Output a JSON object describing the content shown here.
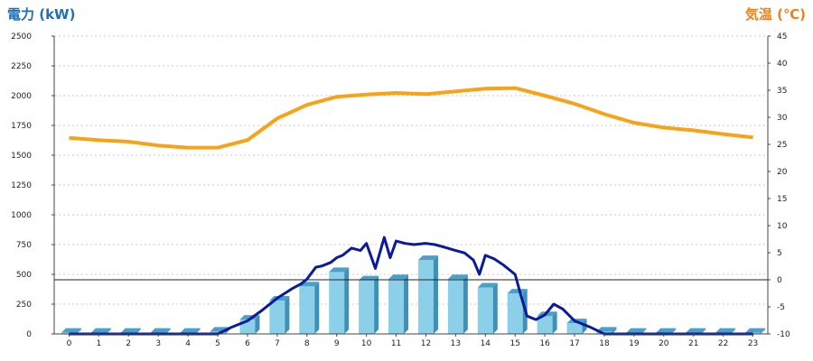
{
  "chart_data": {
    "type": "bar+line",
    "ylabel_left": "電力 (kW)",
    "ylabel_right": "気温 (℃)",
    "categories": [
      "0",
      "1",
      "2",
      "3",
      "4",
      "5",
      "6",
      "7",
      "8",
      "9",
      "10",
      "11",
      "12",
      "13",
      "14",
      "15",
      "16",
      "17",
      "18",
      "19",
      "20",
      "21",
      "22",
      "23"
    ],
    "ylim_left": [
      0,
      2500
    ],
    "yticks_left": [
      "0",
      "250",
      "500",
      "750",
      "1000",
      "1250",
      "1500",
      "1750",
      "2000",
      "2250",
      "2500"
    ],
    "ylim_right": [
      -10,
      45
    ],
    "yticks_right": [
      "-10",
      "-5",
      "0",
      "5",
      "10",
      "15",
      "20",
      "25",
      "30",
      "35",
      "40",
      "45"
    ],
    "grid": true,
    "bars": {
      "values": [
        10,
        10,
        10,
        10,
        10,
        20,
        120,
        280,
        400,
        520,
        450,
        460,
        620,
        460,
        390,
        340,
        150,
        90,
        20,
        10,
        10,
        10,
        10,
        10
      ]
    },
    "power_line": {
      "x": [
        0,
        1,
        2,
        3,
        4,
        5,
        5.5,
        6,
        6.5,
        7,
        7.5,
        7.8,
        8,
        8.3,
        8.5,
        8.8,
        9,
        9.2,
        9.5,
        9.8,
        10,
        10.3,
        10.6,
        10.8,
        11,
        11.3,
        11.6,
        12,
        12.3,
        12.6,
        13,
        13.3,
        13.6,
        13.8,
        14,
        14.3,
        14.6,
        15,
        15.2,
        15.4,
        15.7,
        16,
        16.3,
        16.6,
        17,
        17.5,
        18,
        19,
        20,
        21,
        22,
        23
      ],
      "y": [
        0,
        0,
        0,
        0,
        0,
        0,
        60,
        110,
        200,
        300,
        380,
        420,
        460,
        560,
        570,
        600,
        640,
        660,
        720,
        700,
        760,
        550,
        810,
        640,
        780,
        760,
        750,
        760,
        750,
        730,
        700,
        680,
        620,
        500,
        660,
        630,
        580,
        500,
        320,
        150,
        120,
        160,
        250,
        210,
        110,
        60,
        0,
        0,
        0,
        0,
        0,
        0
      ]
    },
    "temperature_line": {
      "x": [
        0,
        1,
        2,
        3,
        4,
        5,
        6,
        7,
        8,
        9,
        10,
        11,
        12,
        13,
        14,
        15,
        16,
        17,
        18,
        19,
        20,
        21,
        22,
        23
      ],
      "y": [
        26.2,
        25.8,
        25.5,
        24.8,
        24.4,
        24.4,
        25.8,
        29.8,
        32.3,
        33.8,
        34.2,
        34.5,
        34.3,
        34.8,
        35.3,
        35.4,
        34.0,
        32.5,
        30.6,
        29.0,
        28.1,
        27.6,
        26.9,
        26.3
      ]
    },
    "reference_line_right": 0,
    "colors": {
      "bar_front": "#8ccfe8",
      "bar_side": "#3d90b8",
      "bar_top": "#4aa0c8",
      "power_line": "#0a1a9a",
      "temperature_line": "#f7a318",
      "left_label": "#1f6fb5",
      "right_label": "#f07f1e"
    }
  }
}
